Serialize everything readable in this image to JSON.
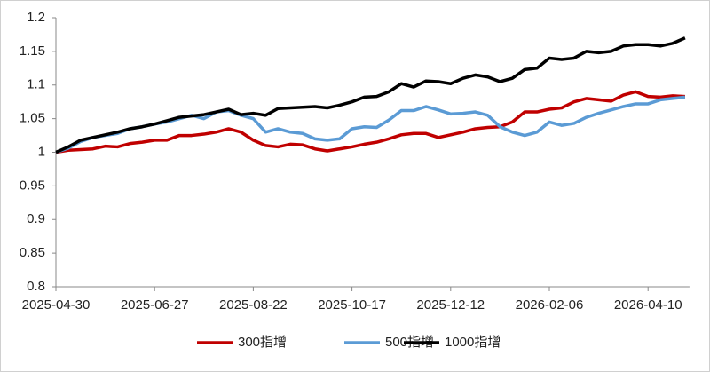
{
  "chart_data": {
    "type": "line",
    "categories": [
      "2025-04-30",
      null,
      null,
      null,
      null,
      null,
      null,
      null,
      "2025-06-27",
      null,
      null,
      null,
      null,
      null,
      null,
      null,
      "2025-08-22",
      null,
      null,
      null,
      null,
      null,
      null,
      null,
      "2025-10-17",
      null,
      null,
      null,
      null,
      null,
      null,
      null,
      "2025-12-12",
      null,
      null,
      null,
      null,
      null,
      null,
      null,
      "2026-02-06",
      null,
      null,
      null,
      null,
      null,
      null,
      null,
      "2026-04-10",
      null,
      null,
      null
    ],
    "series": [
      {
        "name": "300指增",
        "color": "#c00000",
        "values": [
          1.0,
          1.003,
          1.004,
          1.005,
          1.009,
          1.008,
          1.013,
          1.015,
          1.018,
          1.018,
          1.025,
          1.025,
          1.027,
          1.03,
          1.035,
          1.03,
          1.018,
          1.01,
          1.008,
          1.012,
          1.011,
          1.005,
          1.002,
          1.005,
          1.008,
          1.012,
          1.015,
          1.02,
          1.026,
          1.028,
          1.028,
          1.022,
          1.026,
          1.03,
          1.035,
          1.037,
          1.038,
          1.045,
          1.06,
          1.06,
          1.064,
          1.066,
          1.075,
          1.08,
          1.078,
          1.076,
          1.085,
          1.09,
          1.083,
          1.082,
          1.084,
          1.083
        ]
      },
      {
        "name": "500指增",
        "color": "#5b9bd5",
        "values": [
          1.0,
          1.006,
          1.016,
          1.022,
          1.025,
          1.028,
          1.035,
          1.038,
          1.042,
          1.045,
          1.05,
          1.055,
          1.05,
          1.06,
          1.062,
          1.055,
          1.05,
          1.03,
          1.035,
          1.03,
          1.028,
          1.02,
          1.018,
          1.02,
          1.035,
          1.038,
          1.037,
          1.048,
          1.062,
          1.062,
          1.068,
          1.063,
          1.057,
          1.058,
          1.06,
          1.055,
          1.038,
          1.03,
          1.025,
          1.03,
          1.045,
          1.04,
          1.043,
          1.052,
          1.058,
          1.063,
          1.068,
          1.072,
          1.072,
          1.078,
          1.08,
          1.082
        ]
      },
      {
        "name": "1000指增",
        "color": "#000000",
        "values": [
          1.0,
          1.008,
          1.018,
          1.022,
          1.026,
          1.03,
          1.035,
          1.038,
          1.042,
          1.047,
          1.052,
          1.054,
          1.056,
          1.06,
          1.064,
          1.056,
          1.058,
          1.055,
          1.065,
          1.066,
          1.067,
          1.068,
          1.066,
          1.07,
          1.075,
          1.082,
          1.083,
          1.09,
          1.102,
          1.097,
          1.106,
          1.105,
          1.102,
          1.11,
          1.115,
          1.112,
          1.105,
          1.11,
          1.123,
          1.125,
          1.14,
          1.138,
          1.14,
          1.15,
          1.148,
          1.15,
          1.158,
          1.16,
          1.16,
          1.158,
          1.162,
          1.17
        ]
      }
    ],
    "ylim": [
      0.8,
      1.2
    ],
    "yticks": [
      0.8,
      0.85,
      0.9,
      0.95,
      1,
      1.05,
      1.1,
      1.15,
      1.2
    ],
    "grid": false,
    "legend": "bottom"
  }
}
